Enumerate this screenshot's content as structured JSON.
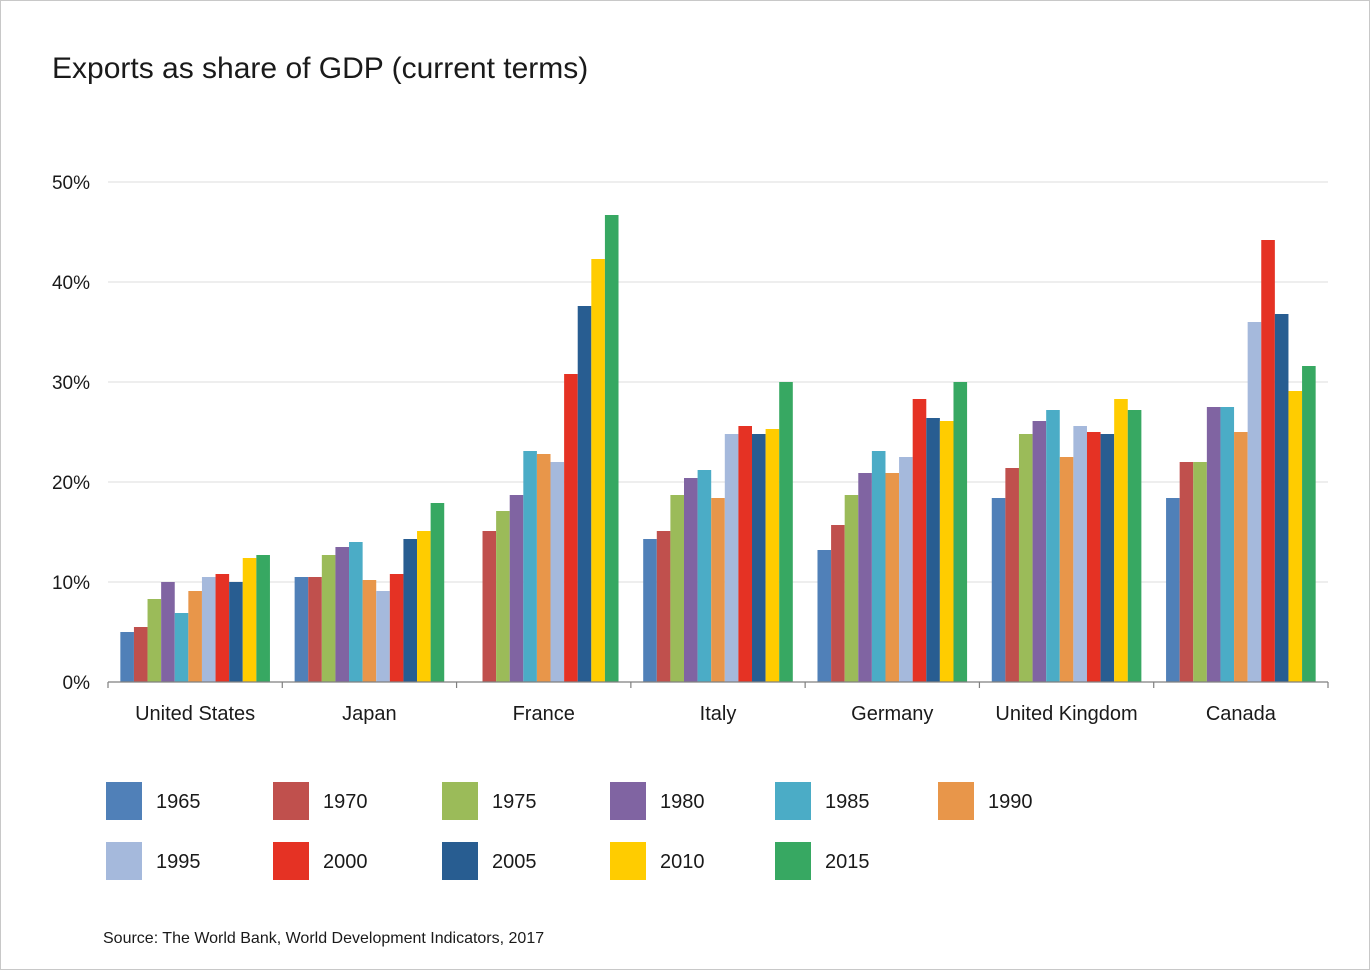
{
  "chart_data": {
    "type": "bar",
    "title": "Exports as share of GDP (current terms)",
    "source": "Source: The World Bank, World Development Indicators, 2017",
    "categories": [
      "United States",
      "Japan",
      "France",
      "Italy",
      "Germany",
      "United Kingdom",
      "Canada"
    ],
    "ylim": [
      0,
      50
    ],
    "yticks": [
      "0%",
      "10%",
      "20%",
      "30%",
      "40%",
      "50%"
    ],
    "ytick_values": [
      0,
      10,
      20,
      30,
      40,
      50
    ],
    "grid": true,
    "legend_position": "bottom",
    "series": [
      {
        "name": "1965",
        "color": "#5080b8",
        "values": [
          5.0,
          10.5,
          null,
          14.3,
          13.2,
          18.4,
          18.4
        ]
      },
      {
        "name": "1970",
        "color": "#c0504d",
        "values": [
          5.5,
          10.5,
          15.1,
          15.1,
          15.7,
          21.4,
          22.0
        ]
      },
      {
        "name": "1975",
        "color": "#9bbb59",
        "values": [
          8.3,
          12.7,
          17.1,
          18.7,
          18.7,
          24.8,
          22.0
        ]
      },
      {
        "name": "1980",
        "color": "#8064a2",
        "values": [
          10.0,
          13.5,
          18.7,
          20.4,
          20.9,
          26.1,
          27.5
        ]
      },
      {
        "name": "1985",
        "color": "#4bacc6",
        "values": [
          6.9,
          14.0,
          23.1,
          21.2,
          23.1,
          27.2,
          27.5
        ]
      },
      {
        "name": "1990",
        "color": "#e8964a",
        "values": [
          9.1,
          10.2,
          22.8,
          18.4,
          20.9,
          22.5,
          25.0
        ]
      },
      {
        "name": "1995",
        "color": "#a5b9dc",
        "values": [
          10.5,
          9.1,
          22.0,
          24.8,
          22.5,
          25.6,
          36.0
        ]
      },
      {
        "name": "2000",
        "color": "#e53224",
        "values": [
          10.8,
          10.8,
          30.8,
          25.6,
          28.3,
          25.0,
          44.2
        ]
      },
      {
        "name": "2005",
        "color": "#285d91",
        "values": [
          10.0,
          14.3,
          37.6,
          24.8,
          26.4,
          24.8,
          36.8
        ]
      },
      {
        "name": "2010",
        "color": "#ffcc00",
        "values": [
          12.4,
          15.1,
          42.3,
          25.3,
          26.1,
          28.3,
          29.1
        ]
      },
      {
        "name": "2015",
        "color": "#37a862",
        "values": [
          12.7,
          17.9,
          46.7,
          30.0,
          30.0,
          27.2,
          31.6
        ]
      }
    ]
  }
}
